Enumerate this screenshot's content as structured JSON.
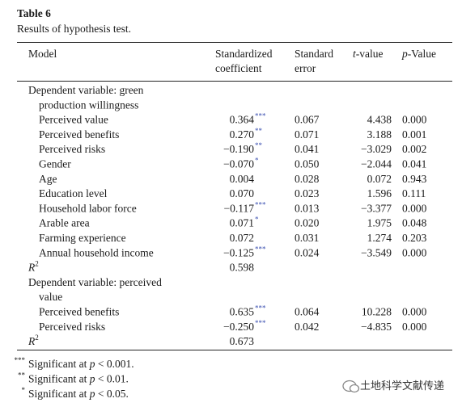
{
  "title": "Table 6",
  "caption": "Results of hypothesis test.",
  "table": {
    "header": {
      "model": "Model",
      "coef": [
        "Standardized",
        "coefficient"
      ],
      "se": [
        "Standard",
        "error"
      ],
      "t": {
        "italic": "t",
        "text": "-value"
      },
      "p": {
        "italic": "p",
        "text": "-Value"
      }
    },
    "sections": [
      {
        "heading": [
          "Dependent variable: green",
          "production willingness"
        ],
        "rows": [
          {
            "name": "Perceived value",
            "coef": "0.364",
            "stars": "***",
            "se": "0.067",
            "t": "4.438",
            "p": "0.000"
          },
          {
            "name": "Perceived benefits",
            "coef": "0.270",
            "stars": "**",
            "se": "0.071",
            "t": "3.188",
            "p": "0.001"
          },
          {
            "name": "Perceived risks",
            "coef": "−0.190",
            "stars": "**",
            "se": "0.041",
            "t": "−3.029",
            "p": "0.002"
          },
          {
            "name": "Gender",
            "coef": "−0.070",
            "stars": "*",
            "se": "0.050",
            "t": "−2.044",
            "p": "0.041"
          },
          {
            "name": "Age",
            "coef": "0.004",
            "se": "0.028",
            "t": "0.072",
            "p": "0.943"
          },
          {
            "name": "Education level",
            "coef": "0.070",
            "se": "0.023",
            "t": "1.596",
            "p": "0.111"
          },
          {
            "name": "Household labor force",
            "coef": "−0.117",
            "stars": "***",
            "se": "0.013",
            "t": "−3.377",
            "p": "0.000"
          },
          {
            "name": "Arable area",
            "coef": "0.071",
            "stars": "*",
            "se": "0.020",
            "t": "1.975",
            "p": "0.048"
          },
          {
            "name": "Farming experience",
            "coef": "0.072",
            "se": "0.031",
            "t": "1.274",
            "p": "0.203"
          },
          {
            "name": "Annual household income",
            "coef": "−0.125",
            "stars": "***",
            "se": "0.024",
            "t": "−3.549",
            "p": "0.000"
          }
        ],
        "r2": {
          "label": "R",
          "sup": "2",
          "value": "0.598"
        }
      },
      {
        "heading": [
          "Dependent variable: perceived",
          "value"
        ],
        "rows": [
          {
            "name": "Perceived benefits",
            "coef": "0.635",
            "stars": "***",
            "se": "0.064",
            "t": "10.228",
            "p": "0.000"
          },
          {
            "name": "Perceived risks",
            "coef": "−0.250",
            "stars": "***",
            "se": "0.042",
            "t": "−4.835",
            "p": "0.000"
          }
        ],
        "r2": {
          "label": "R",
          "sup": "2",
          "value": "0.673"
        }
      }
    ]
  },
  "footnotes": [
    {
      "mark": "***",
      "text": "Significant at ",
      "italic": "p",
      "rest": " < 0.001."
    },
    {
      "mark": "**",
      "text": "Significant at ",
      "italic": "p",
      "rest": " < 0.01."
    },
    {
      "mark": "*",
      "text": "Significant at ",
      "italic": "p",
      "rest": " < 0.05."
    }
  ],
  "watermark": "土地科学文献传递"
}
